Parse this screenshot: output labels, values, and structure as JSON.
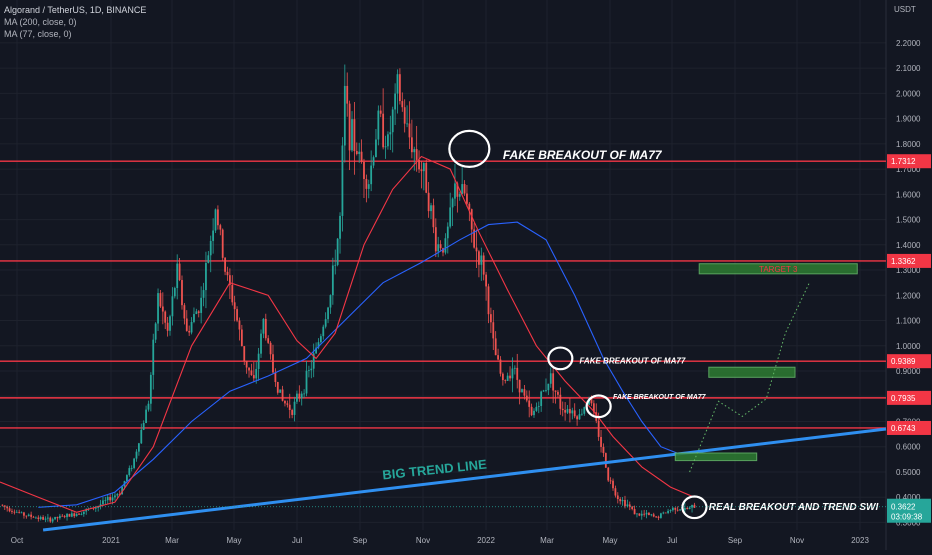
{
  "header": {
    "symbol": "Algorand / TetherUS, 1D, BINANCE",
    "ma1": "MA (200, close, 0)",
    "ma2": "MA (77, close, 0)"
  },
  "colors": {
    "background": "#131722",
    "grid": "#1e222d",
    "axis_text": "#b2b5be",
    "level_line": "#f23645",
    "ma200": "#2962ff",
    "ma77": "#f23645",
    "trend_line": "#2f8ff0",
    "target_box": "#2e7d32",
    "price_tag": "#26a69a",
    "up_candle": "#26a69a",
    "down_candle": "#ef5350"
  },
  "chart_data": {
    "type": "candlestick",
    "y_axis_unit": "USDT",
    "y_ticks": [
      "0.3000",
      "0.4000",
      "0.5000",
      "0.6000",
      "0.7000",
      "0.8000",
      "0.9000",
      "1.0000",
      "1.1000",
      "1.2000",
      "1.3000",
      "1.4000",
      "1.5000",
      "1.6000",
      "1.7000",
      "1.8000",
      "1.9000",
      "2.0000",
      "2.1000",
      "2.2000"
    ],
    "x_ticks": [
      "Oct",
      "2021",
      "Mar",
      "May",
      "Jul",
      "Sep",
      "Nov",
      "2022",
      "Mar",
      "May",
      "Jul",
      "Sep",
      "Nov",
      "2023"
    ],
    "ylim": [
      0.27,
      2.37
    ],
    "horizontal_levels": [
      {
        "label": "1.7312",
        "value": 1.7312
      },
      {
        "label": "1.3362",
        "value": 1.3362
      },
      {
        "label": "0.9389",
        "value": 0.9389
      },
      {
        "label": "0.7935",
        "value": 0.7935
      },
      {
        "label": "0.6743",
        "value": 0.6743
      }
    ],
    "current_price": {
      "label": "0.3622",
      "countdown": "03:09:38",
      "value": 0.3622
    },
    "price_path": [
      [
        0,
        0.37
      ],
      [
        5,
        0.33
      ],
      [
        10,
        0.31
      ],
      [
        15,
        0.33
      ],
      [
        20,
        0.36
      ],
      [
        25,
        0.42
      ],
      [
        28,
        0.55
      ],
      [
        31,
        0.78
      ],
      [
        33,
        1.2
      ],
      [
        35,
        1.05
      ],
      [
        37,
        1.3
      ],
      [
        39,
        1.05
      ],
      [
        42,
        1.18
      ],
      [
        45,
        1.55
      ],
      [
        47,
        1.3
      ],
      [
        49,
        1.15
      ],
      [
        51,
        0.95
      ],
      [
        53,
        0.85
      ],
      [
        55,
        1.1
      ],
      [
        57,
        0.9
      ],
      [
        59,
        0.78
      ],
      [
        61,
        0.75
      ],
      [
        63,
        0.82
      ],
      [
        65,
        0.92
      ],
      [
        67,
        1.05
      ],
      [
        69,
        1.2
      ],
      [
        71,
        1.5
      ],
      [
        72,
        2.0
      ],
      [
        73,
        1.85
      ],
      [
        75,
        1.75
      ],
      [
        77,
        1.65
      ],
      [
        79,
        1.9
      ],
      [
        81,
        1.8
      ],
      [
        83,
        2.02
      ],
      [
        85,
        1.85
      ],
      [
        87,
        1.75
      ],
      [
        89,
        1.65
      ],
      [
        91,
        1.4
      ],
      [
        93,
        1.4
      ],
      [
        95,
        1.62
      ],
      [
        97,
        1.6
      ],
      [
        99,
        1.4
      ],
      [
        101,
        1.3
      ],
      [
        103,
        1.0
      ],
      [
        105,
        0.85
      ],
      [
        107,
        0.92
      ],
      [
        109,
        0.82
      ],
      [
        111,
        0.72
      ],
      [
        113,
        0.8
      ],
      [
        115,
        0.88
      ],
      [
        117,
        0.76
      ],
      [
        119,
        0.75
      ],
      [
        121,
        0.72
      ],
      [
        123,
        0.8
      ],
      [
        125,
        0.65
      ],
      [
        127,
        0.48
      ],
      [
        129,
        0.4
      ],
      [
        131,
        0.37
      ],
      [
        133,
        0.33
      ],
      [
        135,
        0.33
      ],
      [
        137,
        0.32
      ],
      [
        139,
        0.34
      ],
      [
        141,
        0.36
      ],
      [
        143,
        0.35
      ],
      [
        145,
        0.3622
      ]
    ],
    "ma77_path": [
      [
        0,
        0.46
      ],
      [
        8,
        0.4
      ],
      [
        16,
        0.34
      ],
      [
        24,
        0.38
      ],
      [
        32,
        0.6
      ],
      [
        40,
        1.0
      ],
      [
        48,
        1.25
      ],
      [
        56,
        1.2
      ],
      [
        62,
        1.02
      ],
      [
        66,
        0.95
      ],
      [
        70,
        1.05
      ],
      [
        76,
        1.4
      ],
      [
        82,
        1.62
      ],
      [
        88,
        1.75
      ],
      [
        94,
        1.7
      ],
      [
        100,
        1.45
      ],
      [
        106,
        1.22
      ],
      [
        112,
        1.0
      ],
      [
        118,
        0.86
      ],
      [
        124,
        0.74
      ],
      [
        128,
        0.64
      ],
      [
        134,
        0.52
      ],
      [
        140,
        0.44
      ],
      [
        145,
        0.4
      ]
    ],
    "ma200_path": [
      [
        8,
        0.36
      ],
      [
        16,
        0.37
      ],
      [
        24,
        0.42
      ],
      [
        32,
        0.55
      ],
      [
        40,
        0.7
      ],
      [
        48,
        0.82
      ],
      [
        56,
        0.88
      ],
      [
        64,
        0.95
      ],
      [
        72,
        1.1
      ],
      [
        80,
        1.25
      ],
      [
        88,
        1.33
      ],
      [
        96,
        1.42
      ],
      [
        102,
        1.48
      ],
      [
        108,
        1.49
      ],
      [
        114,
        1.42
      ],
      [
        120,
        1.2
      ],
      [
        126,
        0.95
      ],
      [
        130,
        0.82
      ],
      [
        134,
        0.7
      ],
      [
        138,
        0.6
      ],
      [
        142,
        0.57
      ],
      [
        146,
        0.58
      ]
    ],
    "x_range": [
      0,
      185
    ],
    "trend_line": {
      "from": [
        9,
        0.27
      ],
      "to": [
        185,
        0.67
      ]
    },
    "target_boxes": [
      {
        "label": "TARGET 3",
        "x0": 146,
        "x1": 179,
        "y0": 1.285,
        "y1": 1.325
      },
      {
        "label": "",
        "x0": 148,
        "x1": 166,
        "y0": 0.875,
        "y1": 0.915
      },
      {
        "label": "",
        "x0": 141,
        "x1": 158,
        "y0": 0.545,
        "y1": 0.575
      }
    ],
    "projection_path": [
      [
        144,
        0.5
      ],
      [
        150,
        0.78
      ],
      [
        155,
        0.72
      ],
      [
        160,
        0.79
      ],
      [
        164,
        1.05
      ],
      [
        169,
        1.25
      ]
    ],
    "circled_points": [
      [
        98,
        1.78
      ],
      [
        117,
        0.95
      ],
      [
        125,
        0.76
      ],
      [
        145,
        0.36
      ]
    ],
    "annotations": [
      {
        "text": "FAKE BREAKOUT OF MA77",
        "x": 105,
        "y": 1.74,
        "size": 12
      },
      {
        "text": "FAKE BREAKOUT OF MA77",
        "x": 121,
        "y": 0.93,
        "size": 8
      },
      {
        "text": "FAKE BREAKOUT OF MA77",
        "x": 128,
        "y": 0.79,
        "size": 7
      },
      {
        "text": "REAL BREAKOUT AND TREND SWI",
        "x": 148,
        "y": 0.35,
        "size": 10
      }
    ],
    "trend_label": "BIG TREND LINE"
  }
}
